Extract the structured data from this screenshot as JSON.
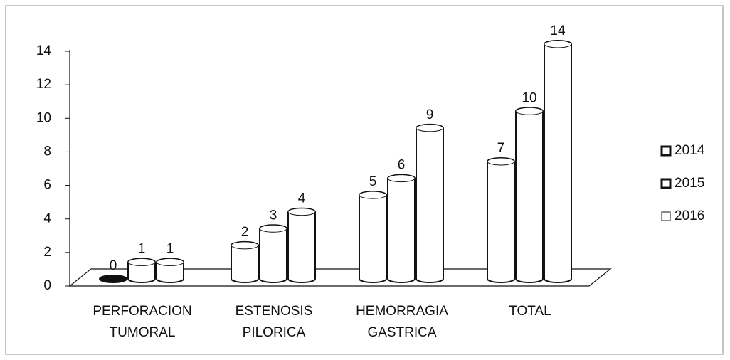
{
  "chart_data": {
    "type": "bar",
    "categories": [
      [
        "PERFORACION",
        "TUMORAL"
      ],
      [
        "ESTENOSIS",
        "PILORICA"
      ],
      [
        "HEMORRAGIA",
        "GASTRICA"
      ],
      [
        "TOTAL"
      ]
    ],
    "series": [
      {
        "name": "2014",
        "color": "#ffffff",
        "values": [
          0,
          2,
          5,
          7
        ]
      },
      {
        "name": "2015",
        "color": "#ffffff",
        "values": [
          1,
          3,
          6,
          10
        ]
      },
      {
        "name": "2016",
        "color": "#ffffff",
        "values": [
          1,
          4,
          9,
          14
        ]
      }
    ],
    "ylim": [
      0,
      14
    ],
    "yticks": [
      0,
      2,
      4,
      6,
      8,
      10,
      12,
      14
    ],
    "legend": "right"
  }
}
